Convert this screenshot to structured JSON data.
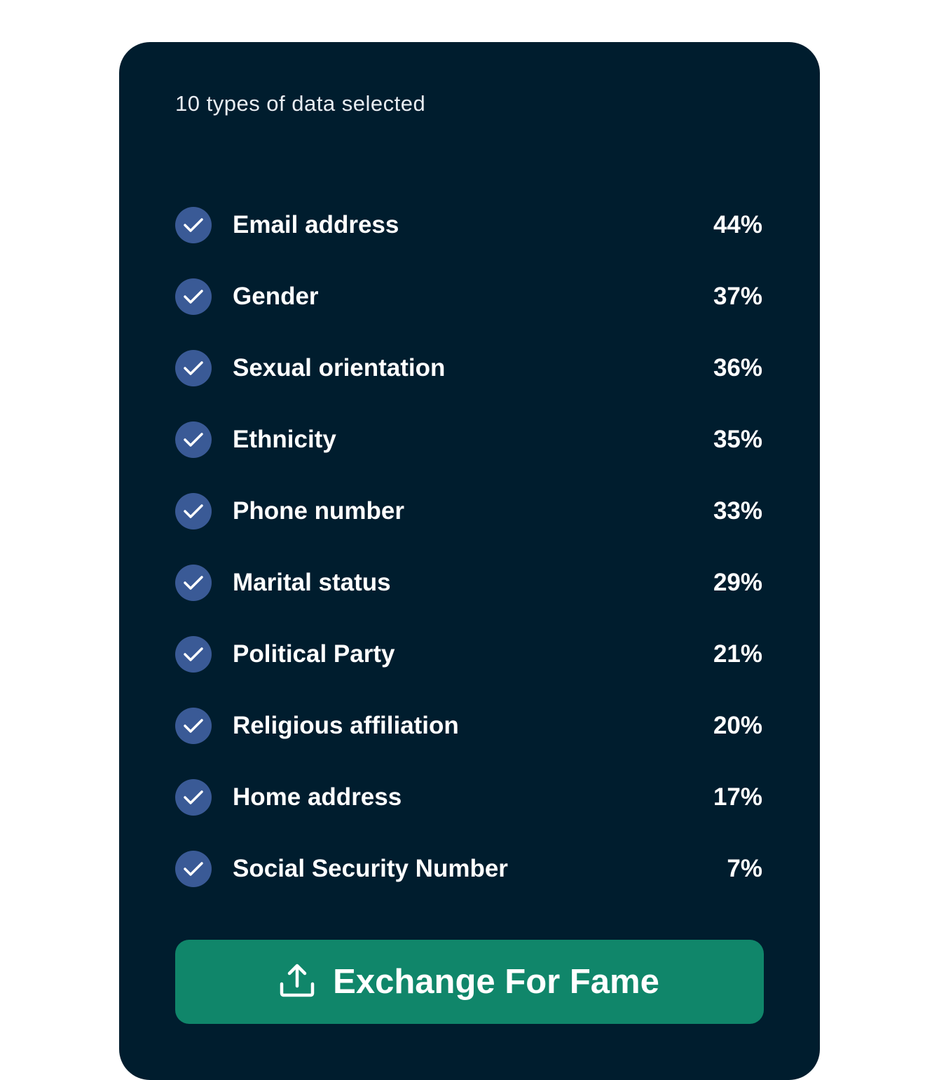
{
  "header": {
    "title": "10 types of data selected"
  },
  "items": [
    {
      "label": "Email address",
      "percent": "44%",
      "checked": true
    },
    {
      "label": "Gender",
      "percent": "37%",
      "checked": true
    },
    {
      "label": "Sexual orientation",
      "percent": "36%",
      "checked": true
    },
    {
      "label": "Ethnicity",
      "percent": "35%",
      "checked": true
    },
    {
      "label": "Phone number",
      "percent": "33%",
      "checked": true
    },
    {
      "label": "Marital status",
      "percent": "29%",
      "checked": true
    },
    {
      "label": "Political Party",
      "percent": "21%",
      "checked": true
    },
    {
      "label": "Religious affiliation",
      "percent": "20%",
      "checked": true
    },
    {
      "label": "Home address",
      "percent": "17%",
      "checked": true
    },
    {
      "label": "Social Security Number",
      "percent": "7%",
      "checked": true
    }
  ],
  "action": {
    "label": "Exchange For Fame",
    "icon": "upload-icon"
  },
  "colors": {
    "background": "#001d2e",
    "check": "#3a5a96",
    "button": "#10866a"
  }
}
